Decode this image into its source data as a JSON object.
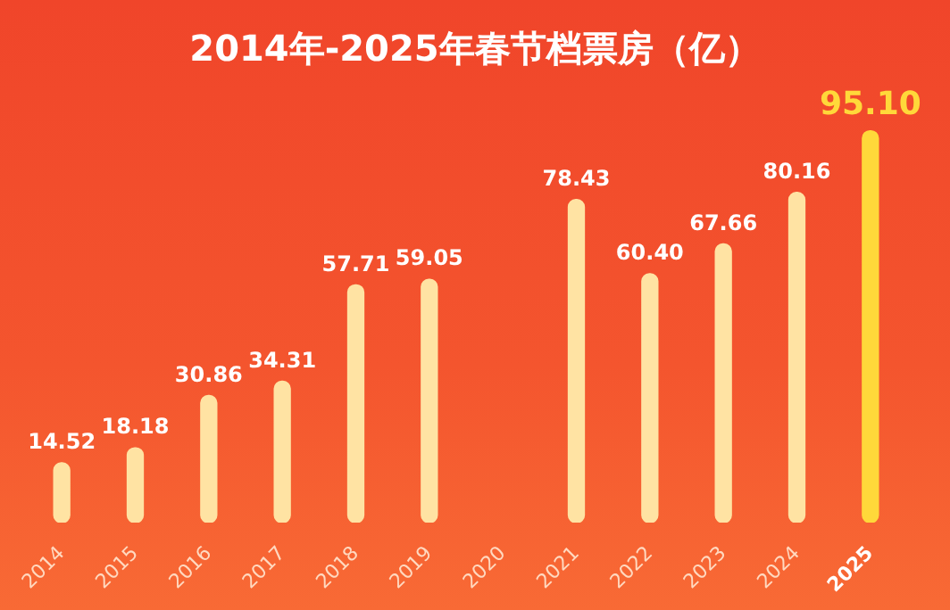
{
  "chart_data": {
    "type": "bar",
    "title": "2014年-2025年春节档票房（亿）",
    "categories": [
      "2014",
      "2015",
      "2016",
      "2017",
      "2018",
      "2019",
      "2020",
      "2021",
      "2022",
      "2023",
      "2024",
      "2025"
    ],
    "values": [
      14.52,
      18.18,
      30.86,
      34.31,
      57.71,
      59.05,
      null,
      78.43,
      60.4,
      67.66,
      80.16,
      95.1
    ],
    "colors": [
      "#ffe3a3",
      "#ffe3a3",
      "#ffe3a3",
      "#ffe3a3",
      "#ffe3a3",
      "#ffe3a3",
      "#ffe3a3",
      "#ffe3a3",
      "#ffe3a3",
      "#ffe3a3",
      "#ffe3a3",
      "#ffd83a"
    ],
    "value_labels": [
      "14.52",
      "18.18",
      "30.86",
      "34.31",
      "57.71",
      "59.05",
      null,
      "78.43",
      "60.40",
      "67.66",
      "80.16",
      "95.10"
    ],
    "grid": false,
    "legend": false,
    "tick_labels": "x"
  }
}
